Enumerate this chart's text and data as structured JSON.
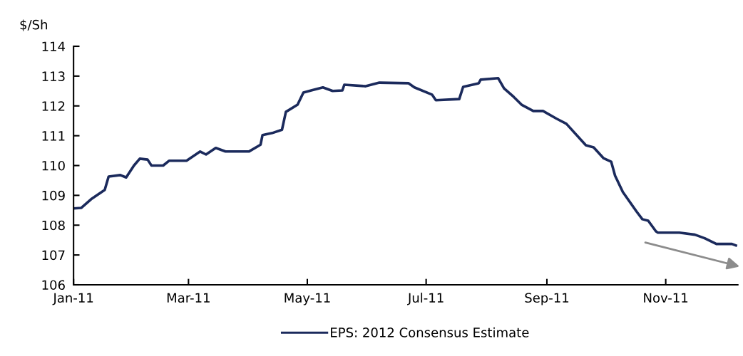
{
  "chart_data": {
    "type": "line",
    "ylabel": "$/Sh",
    "x": [
      "2011-01-01",
      "2011-01-05",
      "2011-01-10",
      "2011-01-17",
      "2011-01-19",
      "2011-01-25",
      "2011-01-28",
      "2011-02-01",
      "2011-02-04",
      "2011-02-08",
      "2011-02-10",
      "2011-02-16",
      "2011-02-19",
      "2011-02-28",
      "2011-03-07",
      "2011-03-10",
      "2011-03-15",
      "2011-03-20",
      "2011-04-01",
      "2011-04-07",
      "2011-04-08",
      "2011-04-13",
      "2011-04-18",
      "2011-04-20",
      "2011-04-26",
      "2011-04-29",
      "2011-05-03",
      "2011-05-09",
      "2011-05-14",
      "2011-05-19",
      "2011-05-20",
      "2011-05-31",
      "2011-06-07",
      "2011-06-22",
      "2011-06-25",
      "2011-07-04",
      "2011-07-06",
      "2011-07-18",
      "2011-07-20",
      "2011-07-28",
      "2011-07-29",
      "2011-08-07",
      "2011-08-10",
      "2011-08-15",
      "2011-08-19",
      "2011-08-25",
      "2011-08-30",
      "2011-09-06",
      "2011-09-11",
      "2011-09-21",
      "2011-09-25",
      "2011-09-30",
      "2011-10-04",
      "2011-10-06",
      "2011-10-10",
      "2011-10-17",
      "2011-10-20",
      "2011-10-23",
      "2011-10-27",
      "2011-10-28",
      "2011-11-08",
      "2011-11-16",
      "2011-11-21",
      "2011-11-27",
      "2011-12-05",
      "2011-12-07"
    ],
    "series": [
      {
        "name": "EPS: 2012 Consensus Estimate",
        "color": "#1b2a5c",
        "values": [
          108.56,
          108.58,
          108.87,
          109.18,
          109.63,
          109.68,
          109.6,
          110.0,
          110.23,
          110.2,
          110.0,
          110.0,
          110.16,
          110.16,
          110.47,
          110.37,
          110.59,
          110.47,
          110.47,
          110.7,
          111.02,
          111.09,
          111.2,
          111.8,
          112.04,
          112.45,
          112.52,
          112.62,
          112.5,
          112.52,
          112.71,
          112.66,
          112.78,
          112.76,
          112.62,
          112.38,
          112.19,
          112.23,
          112.64,
          112.76,
          112.88,
          112.93,
          112.59,
          112.3,
          112.04,
          111.83,
          111.83,
          111.57,
          111.4,
          110.68,
          110.61,
          110.25,
          110.13,
          109.66,
          109.11,
          108.46,
          108.2,
          108.15,
          107.79,
          107.75,
          107.75,
          107.68,
          107.56,
          107.37,
          107.37,
          107.32
        ]
      }
    ],
    "xlim": [
      "2011-01-01",
      "2011-12-08"
    ],
    "xticks": [
      {
        "value": "2011-01-01",
        "label": "Jan-11"
      },
      {
        "value": "2011-03-01",
        "label": "Mar-11"
      },
      {
        "value": "2011-05-01",
        "label": "May-11"
      },
      {
        "value": "2011-07-01",
        "label": "Jul-11"
      },
      {
        "value": "2011-09-01",
        "label": "Sep-11"
      },
      {
        "value": "2011-11-01",
        "label": "Nov-11"
      }
    ],
    "ylim": [
      106,
      114
    ],
    "yticks": [
      106,
      107,
      108,
      109,
      110,
      111,
      112,
      113,
      114
    ],
    "grid": false,
    "legend": "bottom",
    "marker": "none",
    "line_style": "solid"
  }
}
